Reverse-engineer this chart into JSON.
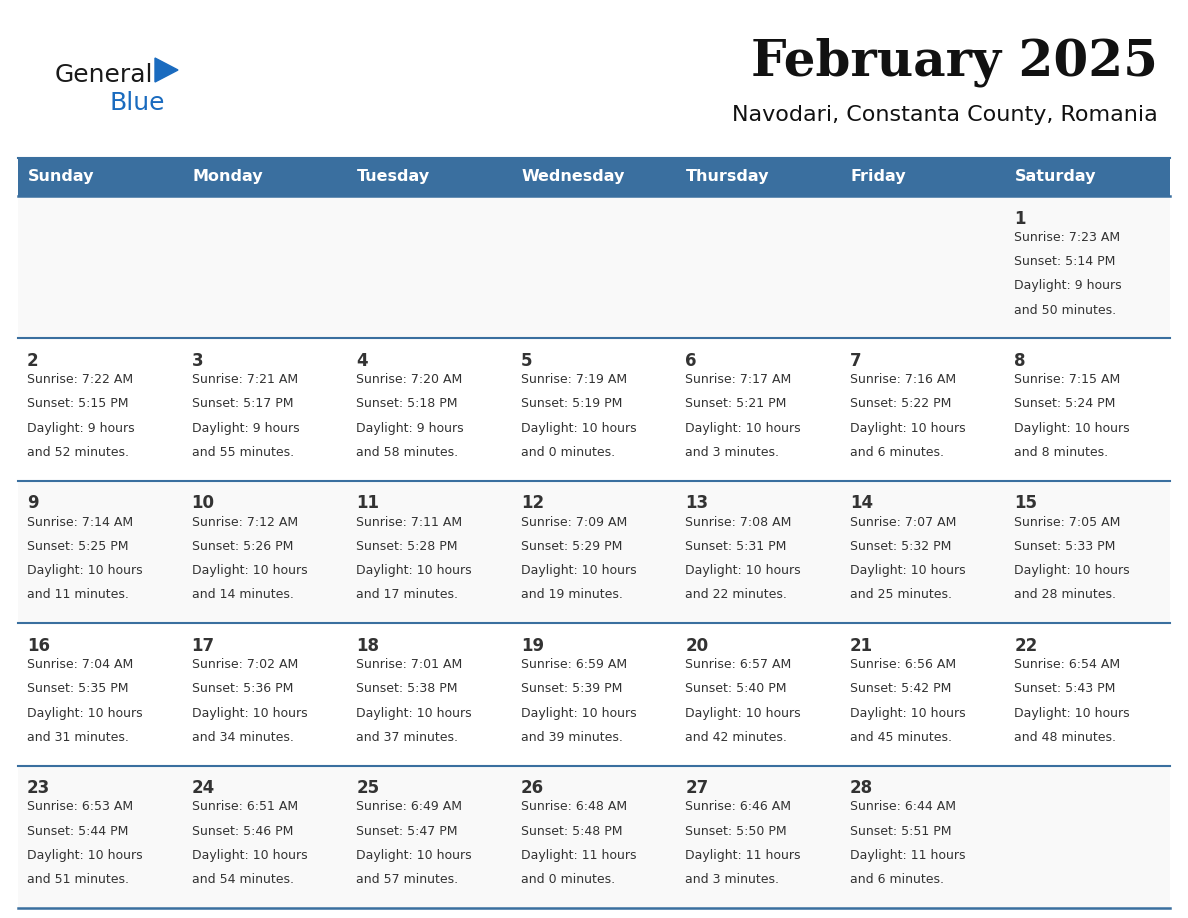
{
  "title": "February 2025",
  "subtitle": "Navodari, Constanta County, Romania",
  "header_color": "#3a6f9f",
  "header_text_color": "#ffffff",
  "border_color": "#3a6f9f",
  "text_color": "#333333",
  "day_num_color": "#333333",
  "cell_line_color": "#3a6f9f",
  "days_of_week": [
    "Sunday",
    "Monday",
    "Tuesday",
    "Wednesday",
    "Thursday",
    "Friday",
    "Saturday"
  ],
  "logo_general_color": "#1a1a1a",
  "logo_blue_color": "#1a6bbf",
  "logo_triangle_color": "#1a6bbf",
  "calendar_data": [
    [
      null,
      null,
      null,
      null,
      null,
      null,
      {
        "day": 1,
        "sunrise": "7:23 AM",
        "sunset": "5:14 PM",
        "daylight": "9 hours",
        "daylight2": "and 50 minutes."
      }
    ],
    [
      {
        "day": 2,
        "sunrise": "7:22 AM",
        "sunset": "5:15 PM",
        "daylight": "9 hours",
        "daylight2": "and 52 minutes."
      },
      {
        "day": 3,
        "sunrise": "7:21 AM",
        "sunset": "5:17 PM",
        "daylight": "9 hours",
        "daylight2": "and 55 minutes."
      },
      {
        "day": 4,
        "sunrise": "7:20 AM",
        "sunset": "5:18 PM",
        "daylight": "9 hours",
        "daylight2": "and 58 minutes."
      },
      {
        "day": 5,
        "sunrise": "7:19 AM",
        "sunset": "5:19 PM",
        "daylight": "10 hours",
        "daylight2": "and 0 minutes."
      },
      {
        "day": 6,
        "sunrise": "7:17 AM",
        "sunset": "5:21 PM",
        "daylight": "10 hours",
        "daylight2": "and 3 minutes."
      },
      {
        "day": 7,
        "sunrise": "7:16 AM",
        "sunset": "5:22 PM",
        "daylight": "10 hours",
        "daylight2": "and 6 minutes."
      },
      {
        "day": 8,
        "sunrise": "7:15 AM",
        "sunset": "5:24 PM",
        "daylight": "10 hours",
        "daylight2": "and 8 minutes."
      }
    ],
    [
      {
        "day": 9,
        "sunrise": "7:14 AM",
        "sunset": "5:25 PM",
        "daylight": "10 hours",
        "daylight2": "and 11 minutes."
      },
      {
        "day": 10,
        "sunrise": "7:12 AM",
        "sunset": "5:26 PM",
        "daylight": "10 hours",
        "daylight2": "and 14 minutes."
      },
      {
        "day": 11,
        "sunrise": "7:11 AM",
        "sunset": "5:28 PM",
        "daylight": "10 hours",
        "daylight2": "and 17 minutes."
      },
      {
        "day": 12,
        "sunrise": "7:09 AM",
        "sunset": "5:29 PM",
        "daylight": "10 hours",
        "daylight2": "and 19 minutes."
      },
      {
        "day": 13,
        "sunrise": "7:08 AM",
        "sunset": "5:31 PM",
        "daylight": "10 hours",
        "daylight2": "and 22 minutes."
      },
      {
        "day": 14,
        "sunrise": "7:07 AM",
        "sunset": "5:32 PM",
        "daylight": "10 hours",
        "daylight2": "and 25 minutes."
      },
      {
        "day": 15,
        "sunrise": "7:05 AM",
        "sunset": "5:33 PM",
        "daylight": "10 hours",
        "daylight2": "and 28 minutes."
      }
    ],
    [
      {
        "day": 16,
        "sunrise": "7:04 AM",
        "sunset": "5:35 PM",
        "daylight": "10 hours",
        "daylight2": "and 31 minutes."
      },
      {
        "day": 17,
        "sunrise": "7:02 AM",
        "sunset": "5:36 PM",
        "daylight": "10 hours",
        "daylight2": "and 34 minutes."
      },
      {
        "day": 18,
        "sunrise": "7:01 AM",
        "sunset": "5:38 PM",
        "daylight": "10 hours",
        "daylight2": "and 37 minutes."
      },
      {
        "day": 19,
        "sunrise": "6:59 AM",
        "sunset": "5:39 PM",
        "daylight": "10 hours",
        "daylight2": "and 39 minutes."
      },
      {
        "day": 20,
        "sunrise": "6:57 AM",
        "sunset": "5:40 PM",
        "daylight": "10 hours",
        "daylight2": "and 42 minutes."
      },
      {
        "day": 21,
        "sunrise": "6:56 AM",
        "sunset": "5:42 PM",
        "daylight": "10 hours",
        "daylight2": "and 45 minutes."
      },
      {
        "day": 22,
        "sunrise": "6:54 AM",
        "sunset": "5:43 PM",
        "daylight": "10 hours",
        "daylight2": "and 48 minutes."
      }
    ],
    [
      {
        "day": 23,
        "sunrise": "6:53 AM",
        "sunset": "5:44 PM",
        "daylight": "10 hours",
        "daylight2": "and 51 minutes."
      },
      {
        "day": 24,
        "sunrise": "6:51 AM",
        "sunset": "5:46 PM",
        "daylight": "10 hours",
        "daylight2": "and 54 minutes."
      },
      {
        "day": 25,
        "sunrise": "6:49 AM",
        "sunset": "5:47 PM",
        "daylight": "10 hours",
        "daylight2": "and 57 minutes."
      },
      {
        "day": 26,
        "sunrise": "6:48 AM",
        "sunset": "5:48 PM",
        "daylight": "11 hours",
        "daylight2": "and 0 minutes."
      },
      {
        "day": 27,
        "sunrise": "6:46 AM",
        "sunset": "5:50 PM",
        "daylight": "11 hours",
        "daylight2": "and 3 minutes."
      },
      {
        "day": 28,
        "sunrise": "6:44 AM",
        "sunset": "5:51 PM",
        "daylight": "11 hours",
        "daylight2": "and 6 minutes."
      },
      null
    ]
  ]
}
